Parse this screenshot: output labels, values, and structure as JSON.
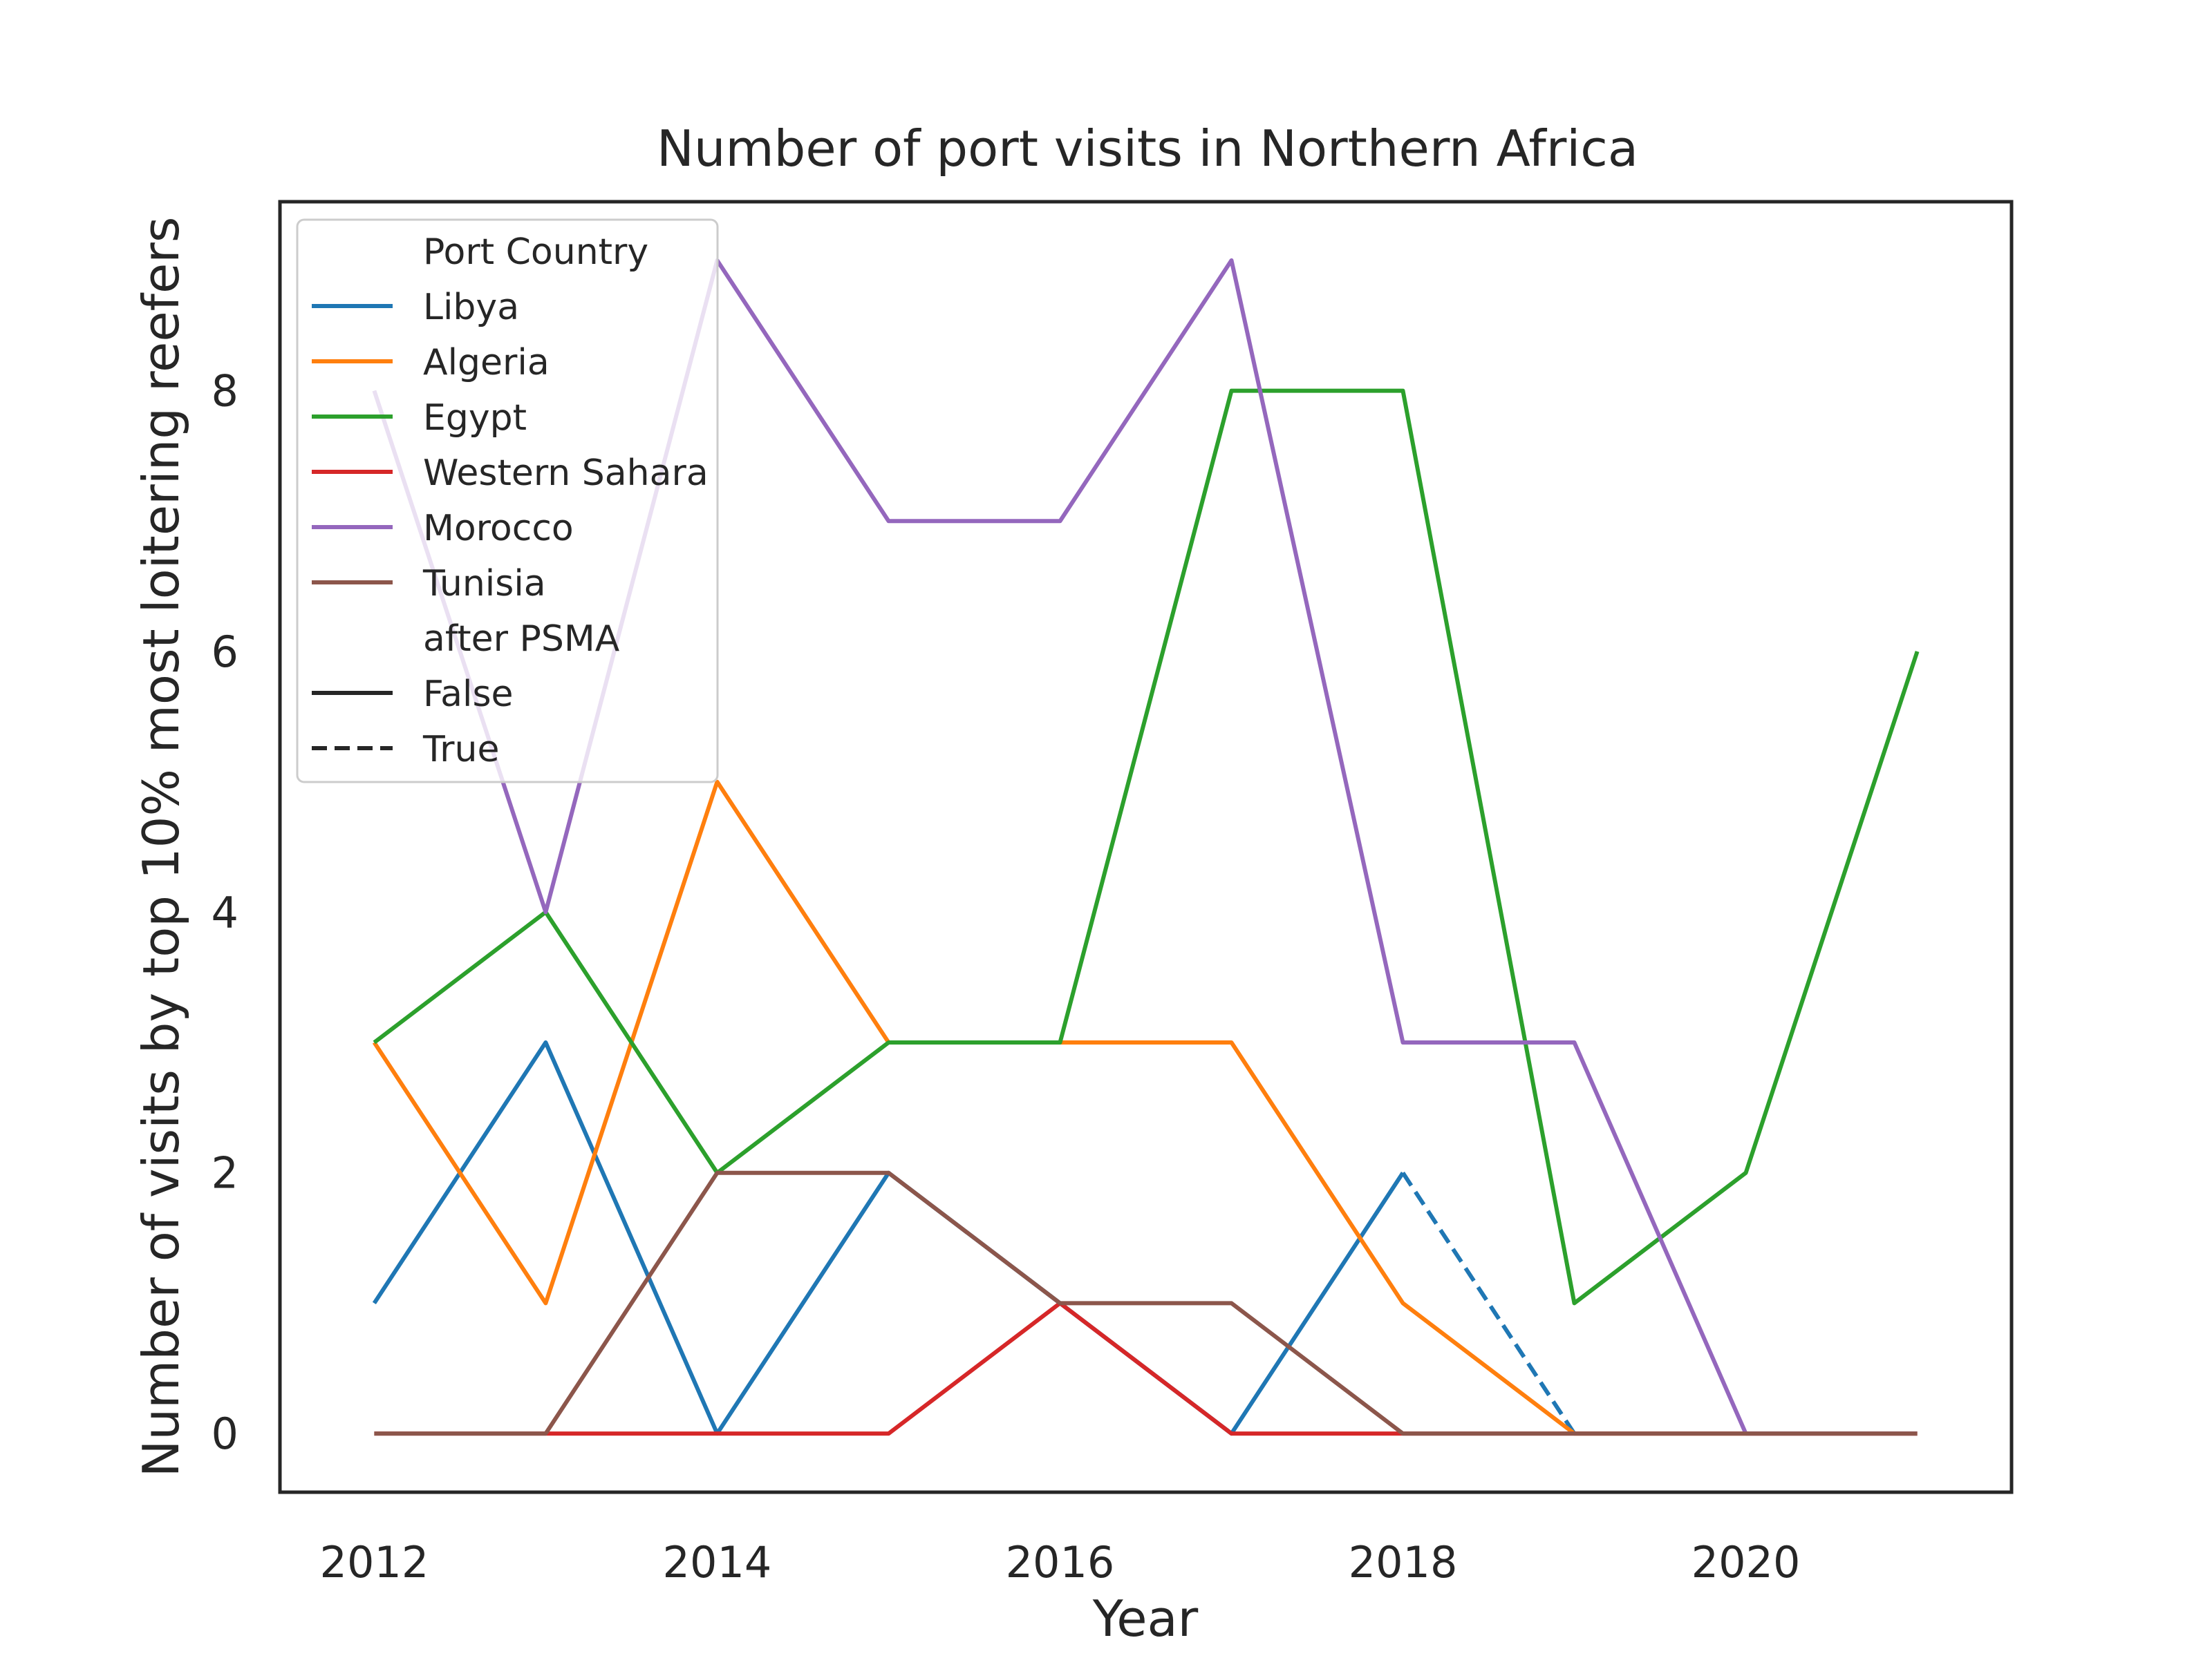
{
  "chart_data": {
    "type": "line",
    "title": "Number of port visits in Northern Africa",
    "xlabel": "Year",
    "ylabel": "Number of visits by top 10% most loitering reefers",
    "xlim": [
      2011.45,
      2021.55
    ],
    "ylim": [
      -0.45,
      9.45
    ],
    "xticks": [
      2012,
      2014,
      2016,
      2018,
      2020
    ],
    "yticks": [
      0,
      2,
      4,
      6,
      8
    ],
    "grid": false,
    "legend_position": "top-left",
    "legend": {
      "hue_title": "Port Country",
      "style_title": "after PSMA",
      "styles": [
        {
          "name": "False",
          "dash": "solid"
        },
        {
          "name": "True",
          "dash": "dashed"
        }
      ]
    },
    "series": [
      {
        "name": "Libya",
        "color": "#1f77b4",
        "segments": [
          {
            "style": "False",
            "x": [
              2012,
              2013,
              2014,
              2015,
              2016,
              2017,
              2018
            ],
            "y": [
              1,
              3,
              0,
              2,
              1,
              0,
              2
            ]
          },
          {
            "style": "True",
            "x": [
              2018,
              2019
            ],
            "y": [
              2,
              0
            ]
          }
        ]
      },
      {
        "name": "Algeria",
        "color": "#ff7f0e",
        "segments": [
          {
            "style": "False",
            "x": [
              2012,
              2013,
              2014,
              2015,
              2016,
              2017,
              2018,
              2019,
              2020,
              2021
            ],
            "y": [
              3,
              1,
              5,
              3,
              3,
              3,
              1,
              0,
              0,
              0
            ]
          }
        ]
      },
      {
        "name": "Egypt",
        "color": "#2ca02c",
        "segments": [
          {
            "style": "False",
            "x": [
              2012,
              2013,
              2014,
              2015,
              2016,
              2017,
              2018,
              2019,
              2020,
              2021
            ],
            "y": [
              3,
              4,
              2,
              3,
              3,
              8,
              8,
              1,
              2,
              6
            ]
          }
        ]
      },
      {
        "name": "Western Sahara",
        "color": "#d62728",
        "segments": [
          {
            "style": "False",
            "x": [
              2012,
              2013,
              2014,
              2015,
              2016,
              2017,
              2018,
              2019,
              2020,
              2021
            ],
            "y": [
              0,
              0,
              0,
              0,
              1,
              0,
              0,
              0,
              0,
              0
            ]
          }
        ]
      },
      {
        "name": "Morocco",
        "color": "#9467bd",
        "segments": [
          {
            "style": "False",
            "x": [
              2012,
              2013,
              2014,
              2015,
              2016,
              2017,
              2018,
              2019,
              2020,
              2021
            ],
            "y": [
              8,
              4,
              9,
              7,
              7,
              9,
              3,
              3,
              0,
              0
            ]
          }
        ]
      },
      {
        "name": "Tunisia",
        "color": "#8c564b",
        "segments": [
          {
            "style": "False",
            "x": [
              2012,
              2013,
              2014,
              2015,
              2016,
              2017,
              2018,
              2019,
              2020,
              2021
            ],
            "y": [
              0,
              0,
              2,
              2,
              1,
              1,
              0,
              0,
              0,
              0
            ]
          }
        ]
      }
    ]
  }
}
